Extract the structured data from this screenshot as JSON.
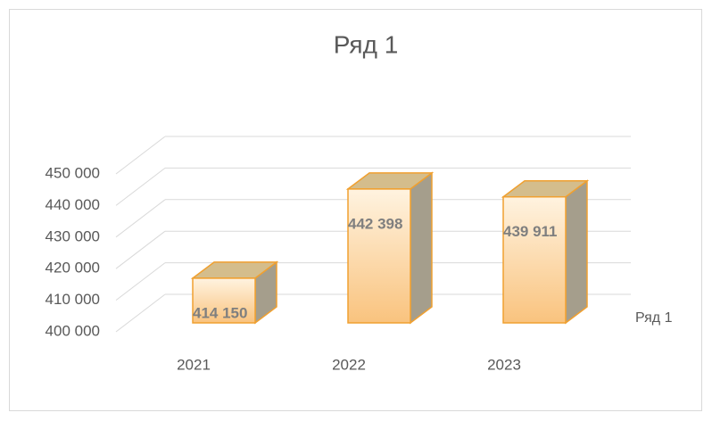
{
  "chart_data": {
    "type": "bar3d",
    "title": "Ряд 1",
    "categories": [
      "2021",
      "2022",
      "2023"
    ],
    "series": [
      {
        "name": "Ряд 1",
        "color": "#f9c37e",
        "values": [
          414150,
          442398,
          439911
        ],
        "value_labels": [
          "414 150",
          "442 398",
          "439 911"
        ]
      }
    ],
    "ylim": [
      400000,
      450000
    ],
    "yticks": [
      {
        "value": 400000,
        "label": "400 000"
      },
      {
        "value": 410000,
        "label": "410 000"
      },
      {
        "value": 420000,
        "label": "420 000"
      },
      {
        "value": 430000,
        "label": "430 000"
      },
      {
        "value": 440000,
        "label": "440 000"
      },
      {
        "value": 450000,
        "label": "450 000"
      }
    ],
    "grid": true
  }
}
